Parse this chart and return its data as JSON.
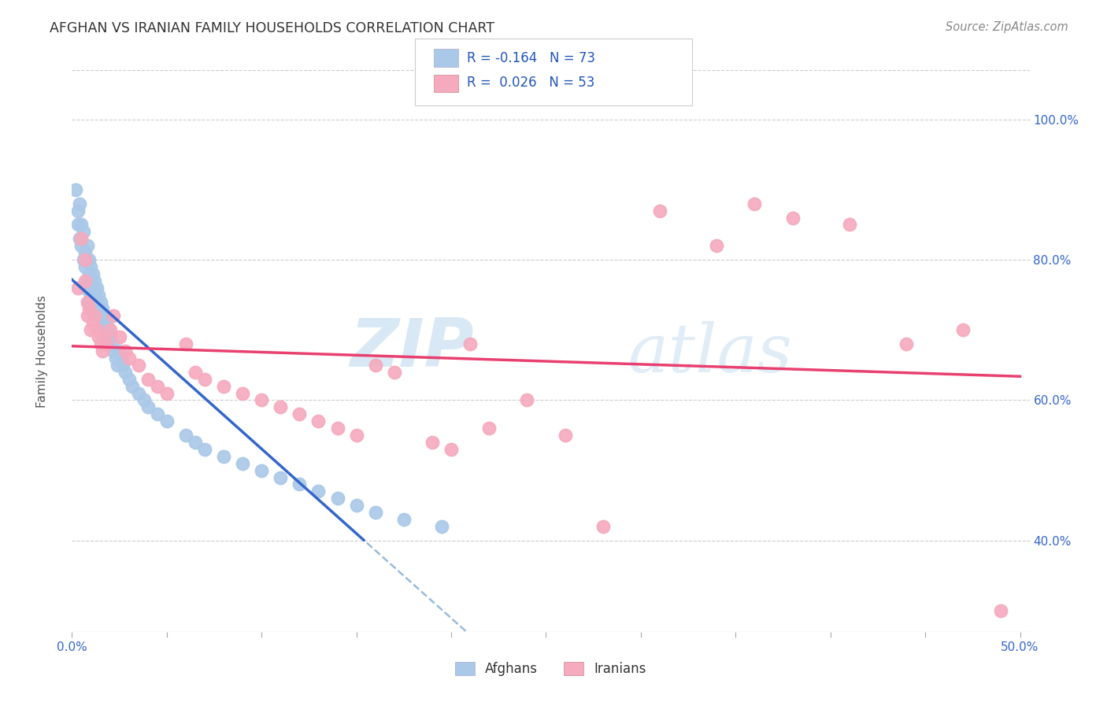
{
  "title": "AFGHAN VS IRANIAN FAMILY HOUSEHOLDS CORRELATION CHART",
  "source": "Source: ZipAtlas.com",
  "ylabel": "Family Households",
  "right_yticks": [
    "100.0%",
    "80.0%",
    "60.0%",
    "40.0%"
  ],
  "right_ytick_vals": [
    1.0,
    0.8,
    0.6,
    0.4
  ],
  "afghan_R": -0.164,
  "afghan_N": 73,
  "iranian_R": 0.026,
  "iranian_N": 53,
  "afghan_color": "#aac8e8",
  "iranian_color": "#f5aabe",
  "afghan_line_color": "#3366cc",
  "iranian_line_color": "#e84070",
  "trendline_dash_color": "#99bbdd",
  "background_color": "#ffffff",
  "watermark_zip": "ZIP",
  "watermark_atlas": "atlas",
  "xlim": [
    0.0,
    0.505
  ],
  "ylim": [
    0.27,
    1.07
  ],
  "afghans_x": [
    0.002,
    0.003,
    0.003,
    0.004,
    0.004,
    0.005,
    0.005,
    0.006,
    0.006,
    0.007,
    0.007,
    0.007,
    0.008,
    0.008,
    0.008,
    0.009,
    0.009,
    0.009,
    0.009,
    0.01,
    0.01,
    0.01,
    0.01,
    0.011,
    0.011,
    0.011,
    0.012,
    0.012,
    0.012,
    0.013,
    0.013,
    0.013,
    0.014,
    0.014,
    0.015,
    0.015,
    0.016,
    0.016,
    0.017,
    0.017,
    0.018,
    0.018,
    0.019,
    0.02,
    0.021,
    0.022,
    0.023,
    0.024,
    0.025,
    0.026,
    0.027,
    0.028,
    0.03,
    0.032,
    0.035,
    0.038,
    0.04,
    0.045,
    0.05,
    0.06,
    0.065,
    0.07,
    0.08,
    0.09,
    0.1,
    0.11,
    0.12,
    0.13,
    0.14,
    0.15,
    0.16,
    0.175,
    0.195
  ],
  "afghans_y": [
    0.9,
    0.87,
    0.85,
    0.83,
    0.88,
    0.85,
    0.82,
    0.84,
    0.8,
    0.81,
    0.79,
    0.76,
    0.82,
    0.8,
    0.77,
    0.8,
    0.78,
    0.76,
    0.74,
    0.79,
    0.77,
    0.75,
    0.73,
    0.78,
    0.76,
    0.74,
    0.77,
    0.75,
    0.73,
    0.76,
    0.74,
    0.72,
    0.75,
    0.73,
    0.74,
    0.72,
    0.73,
    0.71,
    0.72,
    0.7,
    0.71,
    0.69,
    0.7,
    0.69,
    0.68,
    0.67,
    0.66,
    0.65,
    0.67,
    0.66,
    0.65,
    0.64,
    0.63,
    0.62,
    0.61,
    0.6,
    0.59,
    0.58,
    0.57,
    0.55,
    0.54,
    0.53,
    0.52,
    0.51,
    0.5,
    0.49,
    0.48,
    0.47,
    0.46,
    0.45,
    0.44,
    0.43,
    0.42
  ],
  "iranians_x": [
    0.003,
    0.005,
    0.007,
    0.007,
    0.008,
    0.008,
    0.009,
    0.01,
    0.011,
    0.012,
    0.013,
    0.014,
    0.015,
    0.016,
    0.017,
    0.018,
    0.02,
    0.022,
    0.025,
    0.028,
    0.03,
    0.035,
    0.04,
    0.045,
    0.05,
    0.06,
    0.065,
    0.07,
    0.08,
    0.09,
    0.1,
    0.11,
    0.12,
    0.13,
    0.14,
    0.15,
    0.16,
    0.17,
    0.19,
    0.2,
    0.21,
    0.22,
    0.24,
    0.26,
    0.28,
    0.31,
    0.34,
    0.36,
    0.38,
    0.41,
    0.44,
    0.47,
    0.49
  ],
  "iranians_y": [
    0.76,
    0.83,
    0.8,
    0.77,
    0.74,
    0.72,
    0.73,
    0.7,
    0.71,
    0.72,
    0.7,
    0.69,
    0.68,
    0.67,
    0.69,
    0.68,
    0.7,
    0.72,
    0.69,
    0.67,
    0.66,
    0.65,
    0.63,
    0.62,
    0.61,
    0.68,
    0.64,
    0.63,
    0.62,
    0.61,
    0.6,
    0.59,
    0.58,
    0.57,
    0.56,
    0.55,
    0.65,
    0.64,
    0.54,
    0.53,
    0.68,
    0.56,
    0.6,
    0.55,
    0.42,
    0.87,
    0.82,
    0.88,
    0.86,
    0.85,
    0.68,
    0.7,
    0.3
  ]
}
